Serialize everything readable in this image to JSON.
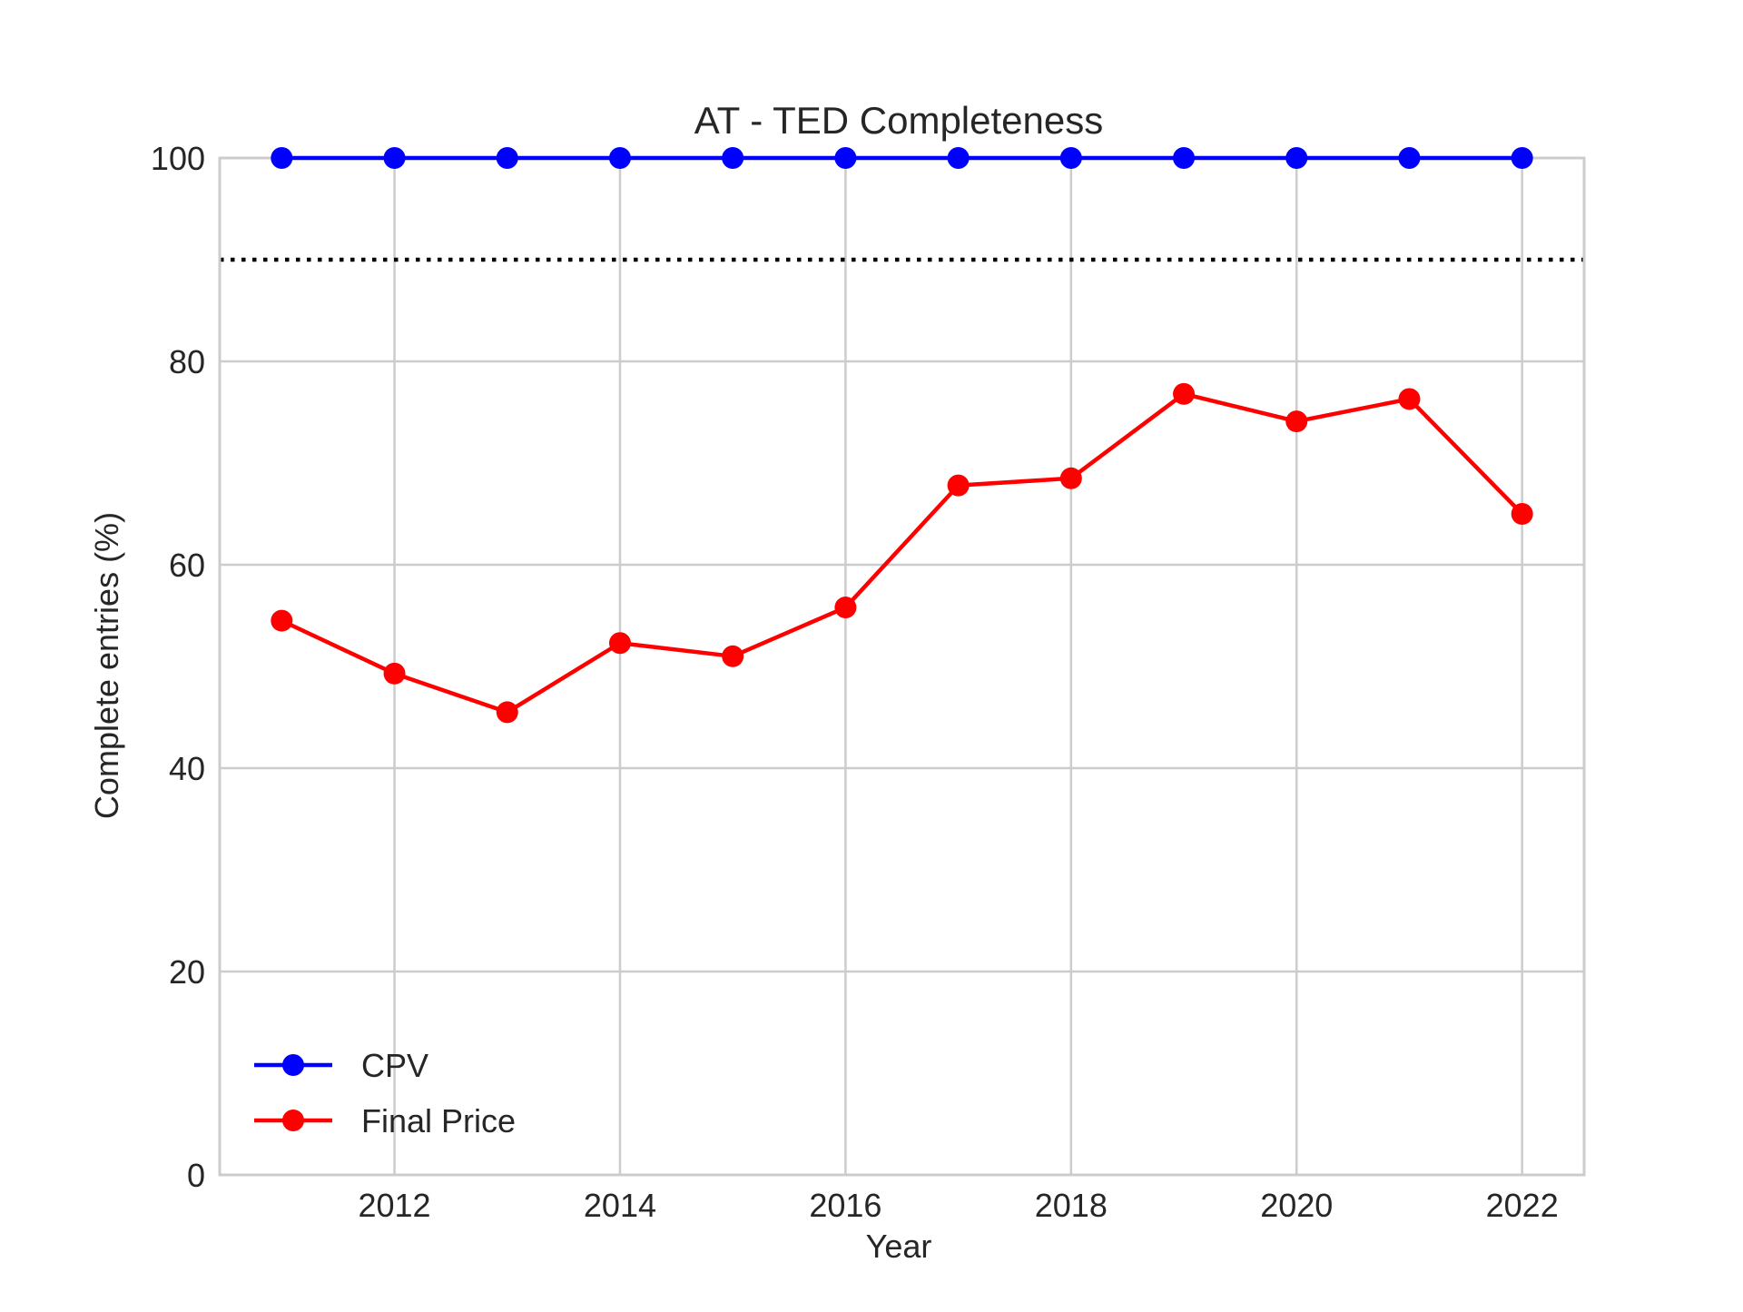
{
  "chart_data": {
    "type": "line",
    "title": "AT - TED Completeness",
    "xlabel": "Year",
    "ylabel": "Complete entries (%)",
    "xlim": [
      2010.45,
      2022.55
    ],
    "ylim": [
      0,
      100
    ],
    "xticks": [
      2012,
      2014,
      2016,
      2018,
      2020,
      2022
    ],
    "xtick_labels": [
      "2012",
      "2014",
      "2016",
      "2018",
      "2020",
      "2022"
    ],
    "yticks": [
      0,
      20,
      40,
      60,
      80,
      100
    ],
    "ytick_labels": [
      "0",
      "20",
      "40",
      "60",
      "80",
      "100"
    ],
    "grid": true,
    "legend_position": "lower-left",
    "x": [
      2011,
      2012,
      2013,
      2014,
      2015,
      2016,
      2017,
      2018,
      2019,
      2020,
      2021,
      2022
    ],
    "series": [
      {
        "name": "CPV",
        "color": "#0000ff",
        "marker": "circle",
        "values": [
          100,
          100,
          100,
          100,
          100,
          100,
          100,
          100,
          100,
          100,
          100,
          100
        ]
      },
      {
        "name": "Final Price",
        "color": "#ff0000",
        "marker": "circle",
        "values": [
          54.5,
          49.3,
          45.5,
          52.3,
          51.0,
          55.8,
          67.8,
          68.5,
          76.8,
          74.1,
          76.3,
          65.0
        ]
      }
    ],
    "reference_lines": [
      {
        "axis": "y",
        "value": 90,
        "style": "dotted",
        "color": "#000000"
      }
    ]
  }
}
